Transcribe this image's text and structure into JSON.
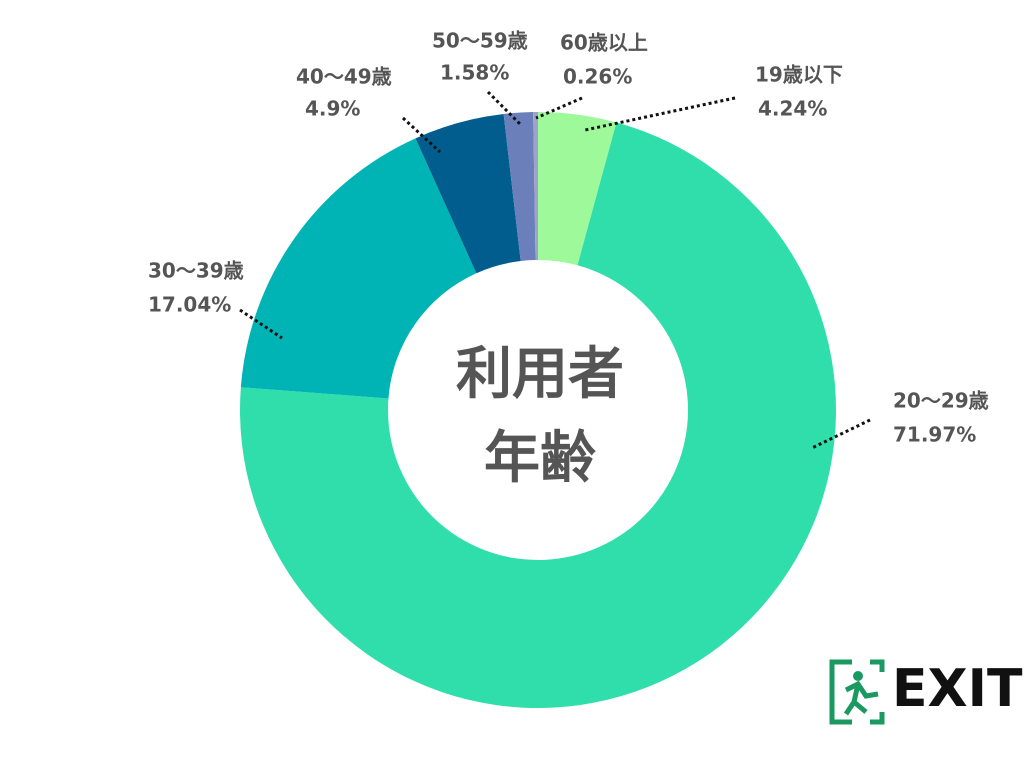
{
  "chart_data": {
    "type": "donut",
    "center_text": [
      "利用者",
      "年齢"
    ],
    "categories": [
      "19歳以下",
      "20〜29歳",
      "30〜39歳",
      "40〜49歳",
      "50〜59歳",
      "60歳以上"
    ],
    "values": [
      4.24,
      71.97,
      17.04,
      4.9,
      1.58,
      0.26
    ],
    "value_labels": [
      "4.24%",
      "71.97%",
      "17.04%",
      "4.9%",
      "1.58%",
      "0.26%"
    ],
    "colors": [
      "#9ef99a",
      "#2fdeab",
      "#00b3b5",
      "#005d8e",
      "#6b7fbb",
      "#a0a3c8"
    ]
  },
  "logo": "EXIT"
}
